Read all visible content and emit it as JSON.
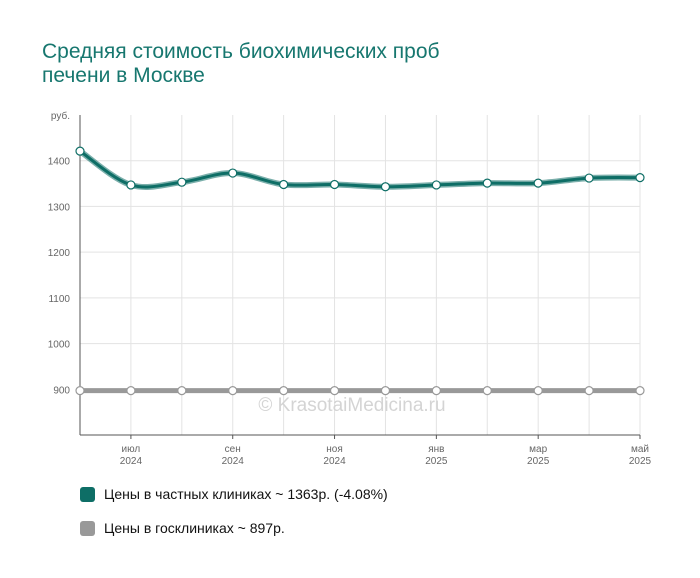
{
  "chart_data": {
    "type": "line",
    "title": [
      "Средняя стоимость биохимических проб",
      "печени в Москве"
    ],
    "ylabel": "руб.",
    "ylim": [
      800,
      1500
    ],
    "yticks": [
      900,
      1000,
      1100,
      1200,
      1300,
      1400
    ],
    "x": [
      "2024-06",
      "2024-07",
      "2024-08",
      "2024-09",
      "2024-10",
      "2024-11",
      "2024-12",
      "2025-01",
      "2025-02",
      "2025-03",
      "2025-04",
      "2025-05"
    ],
    "xtick_labels": [
      {
        "month": "июл",
        "year": "2024"
      },
      {
        "month": "сен",
        "year": "2024"
      },
      {
        "month": "ноя",
        "year": "2024"
      },
      {
        "month": "янв",
        "year": "2025"
      },
      {
        "month": "мар",
        "year": "2025"
      },
      {
        "month": "май",
        "year": "2025"
      }
    ],
    "grid": true,
    "watermark": "© KrasotaiMedicina.ru",
    "series": [
      {
        "name": "Цены в частных клиниках ~ 1363р. (-4.08%)",
        "color": "#0e6e66",
        "values": [
          1421,
          1347,
          1353,
          1373,
          1348,
          1348,
          1343,
          1347,
          1351,
          1351,
          1362,
          1363
        ]
      },
      {
        "name": "Цены в госклиниках ~ 897р.",
        "color": "#999999",
        "values": [
          897,
          897,
          897,
          897,
          897,
          897,
          897,
          897,
          897,
          897,
          897,
          897
        ]
      }
    ]
  }
}
